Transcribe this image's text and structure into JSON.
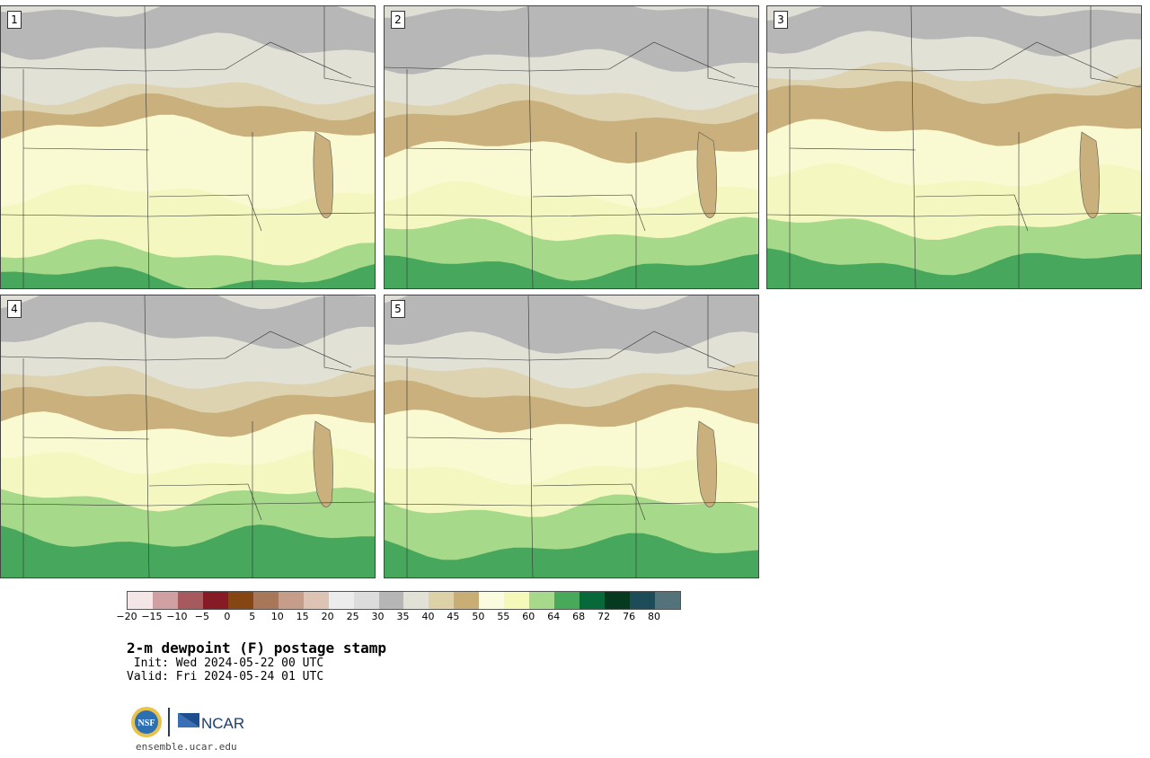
{
  "panels": [
    {
      "label": "1",
      "bands": [
        {
          "c": "#b7b7b7",
          "o": 0
        },
        {
          "c": "#e2e1d6",
          "o": 45
        },
        {
          "c": "#ddd3b0",
          "o": 95
        },
        {
          "c": "#c9b07c",
          "o": 112
        },
        {
          "c": "#fafad2",
          "o": 135
        },
        {
          "c": "#f4f8c0",
          "o": 210
        },
        {
          "c": "#a6d98a",
          "o": 275
        },
        {
          "c": "#47a85d",
          "o": 302
        }
      ]
    },
    {
      "label": "2",
      "bands": [
        {
          "c": "#b7b7b7",
          "o": 0
        },
        {
          "c": "#e2e1d6",
          "o": 60
        },
        {
          "c": "#ddd3b0",
          "o": 100
        },
        {
          "c": "#c9b07c",
          "o": 120
        },
        {
          "c": "#fafad2",
          "o": 160
        },
        {
          "c": "#f4f8c0",
          "o": 210
        },
        {
          "c": "#a6d98a",
          "o": 250
        },
        {
          "c": "#47a85d",
          "o": 290
        }
      ]
    },
    {
      "label": "3",
      "bands": [
        {
          "c": "#b7b7b7",
          "o": 0
        },
        {
          "c": "#e2e1d6",
          "o": 40
        },
        {
          "c": "#ddd3b0",
          "o": 78
        },
        {
          "c": "#c9b07c",
          "o": 95
        },
        {
          "c": "#fafad2",
          "o": 140
        },
        {
          "c": "#f4f8c0",
          "o": 190
        },
        {
          "c": "#a6d98a",
          "o": 245
        },
        {
          "c": "#47a85d",
          "o": 285
        }
      ]
    },
    {
      "label": "4",
      "bands": [
        {
          "c": "#b7b7b7",
          "o": 0
        },
        {
          "c": "#e2e1d6",
          "o": 45
        },
        {
          "c": "#ddd3b0",
          "o": 92
        },
        {
          "c": "#c9b07c",
          "o": 115
        },
        {
          "c": "#fafad2",
          "o": 145
        },
        {
          "c": "#f4f8c0",
          "o": 185
        },
        {
          "c": "#a6d98a",
          "o": 225
        },
        {
          "c": "#47a85d",
          "o": 270
        }
      ]
    },
    {
      "label": "5",
      "bands": [
        {
          "c": "#b7b7b7",
          "o": 0
        },
        {
          "c": "#e2e1d6",
          "o": 55
        },
        {
          "c": "#ddd3b0",
          "o": 88
        },
        {
          "c": "#c9b07c",
          "o": 110
        },
        {
          "c": "#fafad2",
          "o": 140
        },
        {
          "c": "#f4f8c0",
          "o": 195
        },
        {
          "c": "#a6d98a",
          "o": 235
        },
        {
          "c": "#47a85d",
          "o": 280
        }
      ]
    }
  ],
  "colorbar": {
    "colors": [
      "#f4e6e6",
      "#cf9fa2",
      "#a75a5e",
      "#861b26",
      "#864613",
      "#a8775a",
      "#c69d88",
      "#dcc3b4",
      "#ececec",
      "#dcdcdc",
      "#b6b6b6",
      "#e2e1d6",
      "#ddd1a8",
      "#c8ad74",
      "#fbfbe0",
      "#f4f8b9",
      "#a6d98a",
      "#48a95b",
      "#07693a",
      "#053920",
      "#1d4c59",
      "#537279"
    ],
    "ticks": [
      "−20",
      "−15",
      "−10",
      "−5",
      "0",
      "5",
      "10",
      "15",
      "20",
      "25",
      "30",
      "35",
      "40",
      "45",
      "50",
      "55",
      "60",
      "64",
      "68",
      "72",
      "76",
      "80"
    ]
  },
  "title": "2-m dewpoint (F) postage stamp",
  "init": " Init: Wed 2024-05-22 00 UTC",
  "valid": "Valid: Fri 2024-05-24 01 UTC",
  "logo_text": {
    "nsf": "NSF",
    "ncar": "NCAR"
  },
  "site": "ensemble.ucar.edu"
}
